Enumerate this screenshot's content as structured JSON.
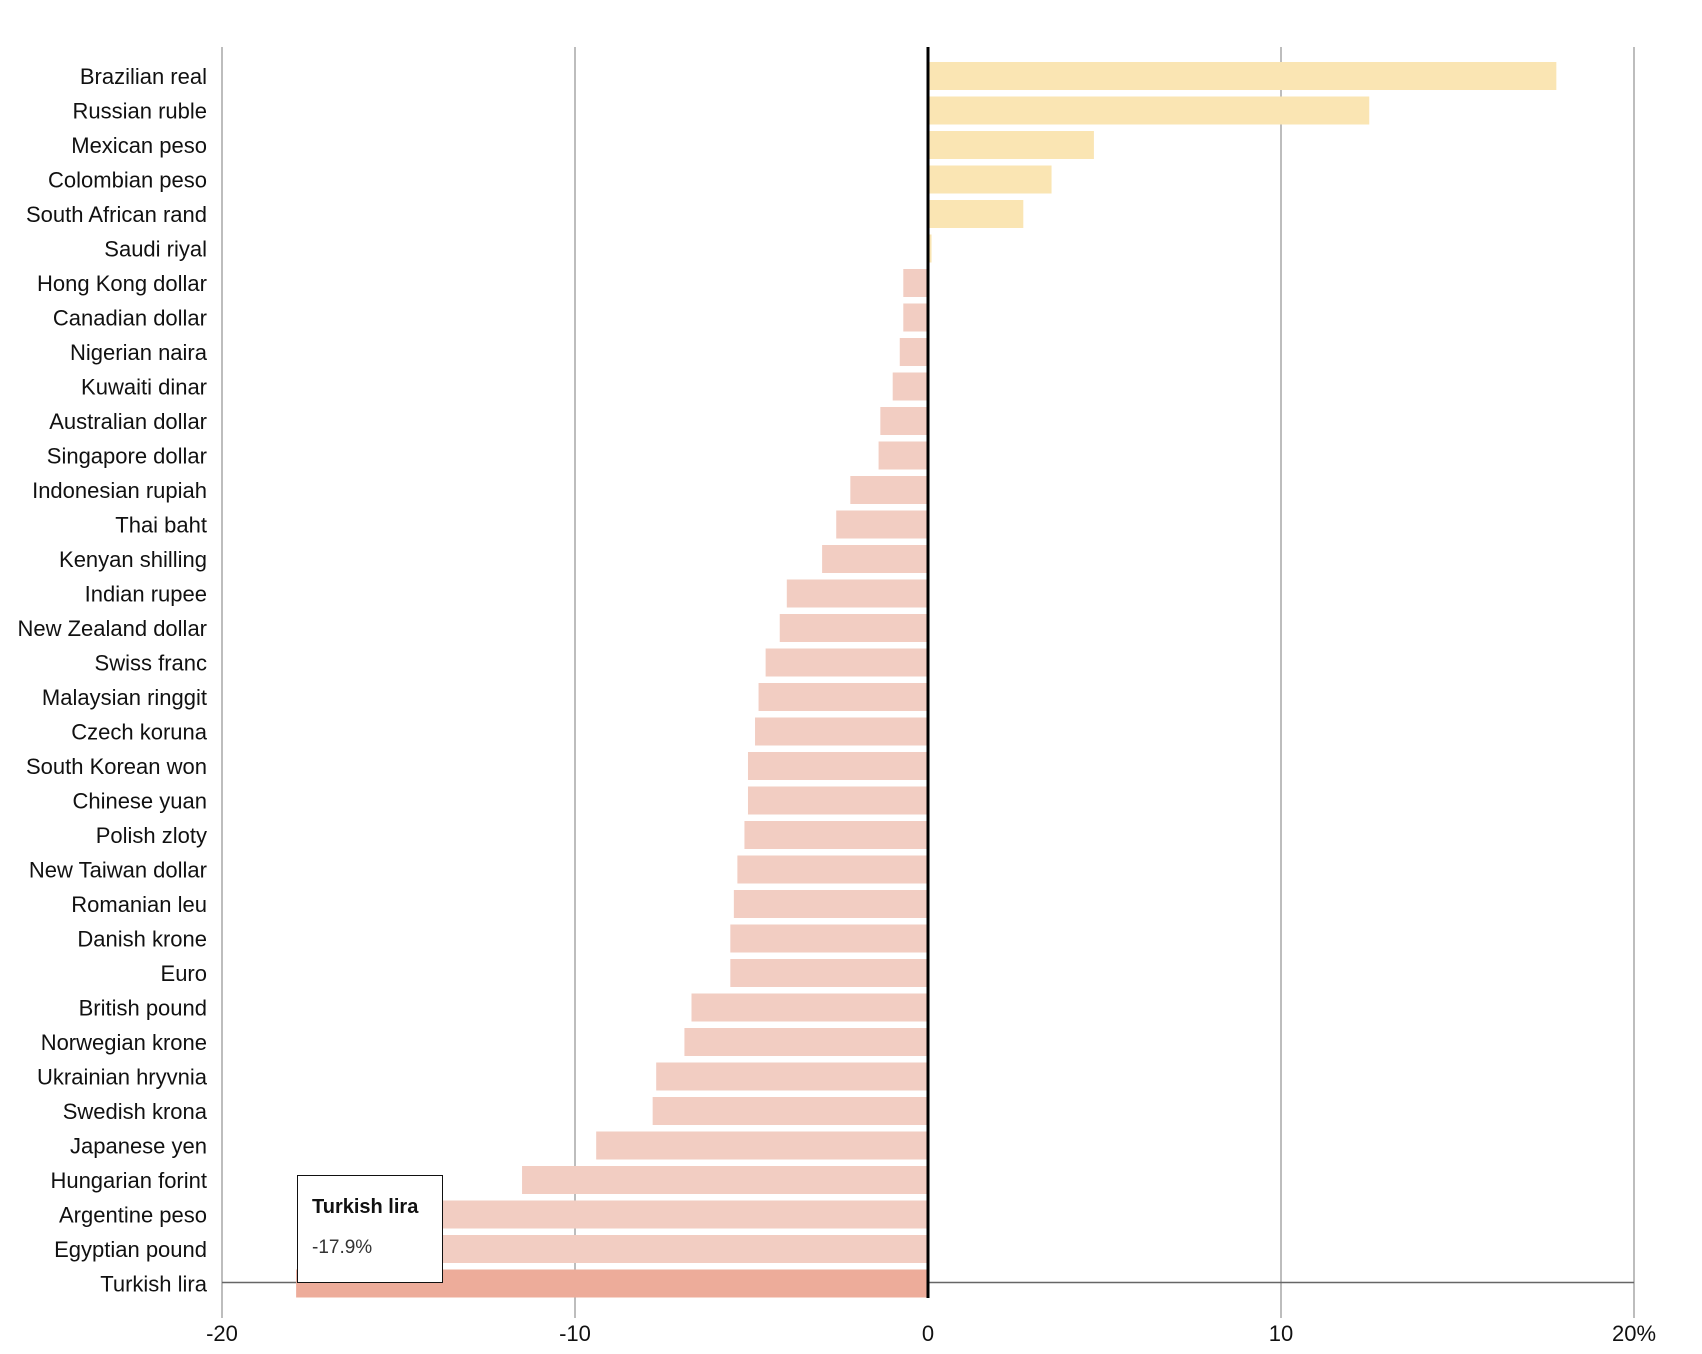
{
  "chart_data": {
    "type": "bar",
    "orientation": "horizontal",
    "title": "",
    "xlabel": "",
    "ylabel": "",
    "xlim": [
      -20,
      20
    ],
    "x_ticks": [
      -20,
      -10,
      0,
      10,
      20
    ],
    "x_tick_labels": [
      "-20",
      "-10",
      "0",
      "10",
      "20%"
    ],
    "grid": true,
    "categories": [
      "Brazilian real",
      "Russian ruble",
      "Mexican peso",
      "Colombian peso",
      "South African rand",
      "Saudi riyal",
      "Hong Kong dollar",
      "Canadian dollar",
      "Nigerian naira",
      "Kuwaiti dinar",
      "Australian dollar",
      "Singapore dollar",
      "Indonesian rupiah",
      "Thai baht",
      "Kenyan shilling",
      "Indian rupee",
      "New Zealand dollar",
      "Swiss franc",
      "Malaysian ringgit",
      "Czech koruna",
      "South Korean won",
      "Chinese yuan",
      "Polish zloty",
      "New Taiwan dollar",
      "Romanian leu",
      "Danish krone",
      "Euro",
      "British pound",
      "Norwegian krone",
      "Ukrainian hryvnia",
      "Swedish krona",
      "Japanese yen",
      "Hungarian forint",
      "Argentine peso",
      "Egyptian pound",
      "Turkish lira"
    ],
    "values": [
      17.8,
      12.5,
      4.7,
      3.5,
      2.7,
      0.1,
      -0.7,
      -0.7,
      -0.8,
      -1.0,
      -1.35,
      -1.4,
      -2.2,
      -2.6,
      -3.0,
      -4.0,
      -4.2,
      -4.6,
      -4.8,
      -4.9,
      -5.1,
      -5.1,
      -5.2,
      -5.4,
      -5.5,
      -5.6,
      -5.6,
      -6.7,
      -6.9,
      -7.7,
      -7.8,
      -9.4,
      -11.5,
      -14.5,
      -15.6,
      -17.9
    ],
    "highlighted": "Turkish lira",
    "colors": {
      "positive": "#fae5b3",
      "negative": "#f2cdc2",
      "highlight": "#edac9a",
      "grid": "#bdbdbd",
      "zero": "#000000",
      "hover_line": "#666666"
    }
  },
  "tooltip": {
    "title": "Turkish lira",
    "value": "-17.9%"
  }
}
